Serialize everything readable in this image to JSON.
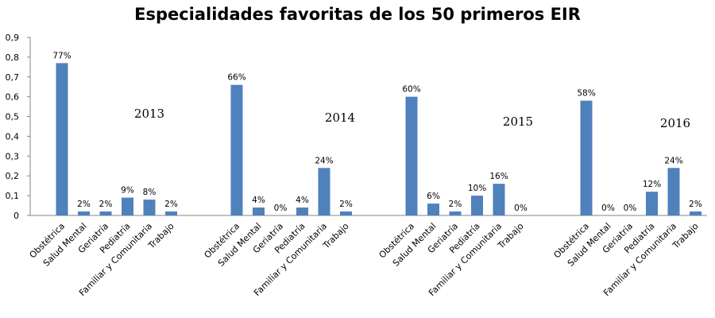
{
  "chart_data": {
    "type": "bar",
    "title": "Especialidades favoritas de los 50 primeros EIR",
    "xlabel": "",
    "ylabel": "",
    "ylim": [
      0,
      0.9
    ],
    "yticks": [
      "0",
      "0,1",
      "0,2",
      "0,3",
      "0,4",
      "0,5",
      "0,6",
      "0,7",
      "0,8",
      "0,9"
    ],
    "grid": false,
    "legend": "none",
    "color": "#4f81bd",
    "groups": [
      {
        "name": "2013",
        "categories": [
          "Obstétrica",
          "Salud Mental",
          "Geriatría",
          "Pediatría",
          "Familiar y Comunitaria",
          "Trabajo"
        ],
        "values": [
          0.77,
          0.02,
          0.02,
          0.09,
          0.08,
          0.02
        ],
        "labels": [
          "77%",
          "2%",
          "2%",
          "9%",
          "8%",
          "2%"
        ]
      },
      {
        "name": "2014",
        "categories": [
          "Obstétrica",
          "Salud Mental",
          "Geriatría",
          "Pediatría",
          "Familiar y Comunitaria",
          "Trabajo"
        ],
        "values": [
          0.66,
          0.04,
          0.0,
          0.04,
          0.24,
          0.02
        ],
        "labels": [
          "66%",
          "4%",
          "0%",
          "4%",
          "24%",
          "2%"
        ]
      },
      {
        "name": "2015",
        "categories": [
          "Obstétrica",
          "Salud Mental",
          "Geriatría",
          "Pediatría",
          "Familiar y Comunitaria",
          "Trabajo"
        ],
        "values": [
          0.6,
          0.06,
          0.02,
          0.1,
          0.16,
          0.0
        ],
        "labels": [
          "60%",
          "6%",
          "2%",
          "10%",
          "16%",
          "0%"
        ]
      },
      {
        "name": "2016",
        "categories": [
          "Obstétrica",
          "Salud Mental",
          "Geriatría",
          "Pediatría",
          "Familiar y Comunitaria",
          "Trabajo"
        ],
        "values": [
          0.58,
          0.0,
          0.0,
          0.12,
          0.24,
          0.02
        ],
        "labels": [
          "58%",
          "0%",
          "0%",
          "12%",
          "24%",
          "2%"
        ]
      }
    ]
  }
}
